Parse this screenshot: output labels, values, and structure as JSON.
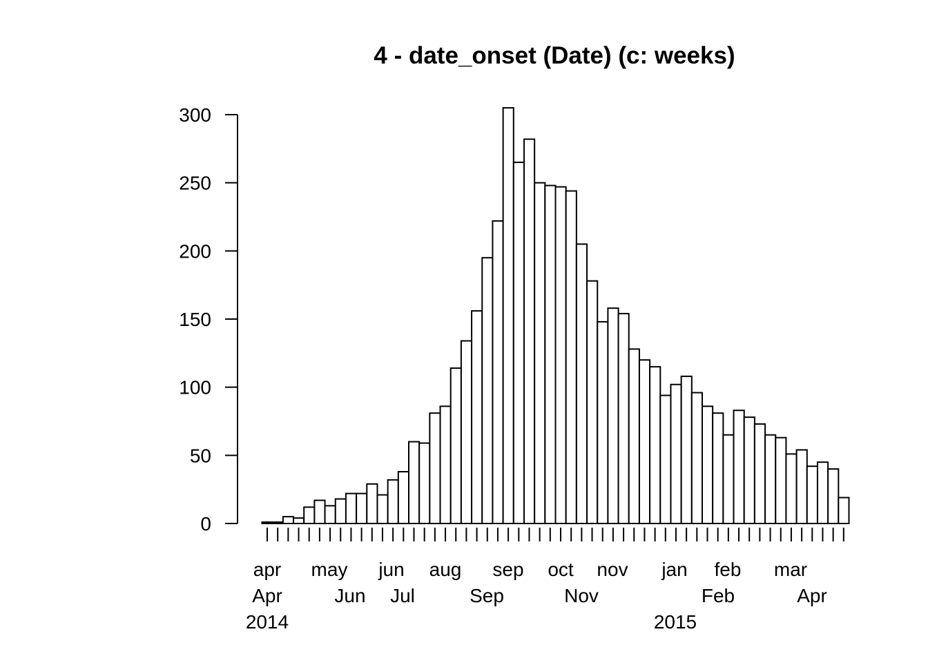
{
  "chart_data": {
    "type": "bar",
    "title": "4 - date_onset (Date) (c: weeks)",
    "xlabel": "",
    "ylabel": "",
    "ylim": [
      0,
      300
    ],
    "yticks": [
      0,
      50,
      100,
      150,
      200,
      250,
      300
    ],
    "grid": false,
    "legend": "none",
    "bar_color": "#ffffff",
    "edge_color": "#000000",
    "series": [
      {
        "values": [
          1,
          1,
          5,
          4,
          12,
          17,
          13,
          18,
          22,
          22,
          29,
          21,
          32,
          38,
          60,
          59,
          81,
          86,
          114,
          134,
          156,
          195,
          222,
          305,
          265,
          282,
          250,
          248,
          247,
          244,
          205,
          178,
          148,
          158,
          154,
          128,
          120,
          115,
          94,
          102,
          108,
          96,
          86,
          81,
          65,
          83,
          78,
          73,
          65,
          63,
          51,
          54,
          42,
          45,
          40,
          19
        ]
      }
    ],
    "x_tick_labels": {
      "level1": [
        "apr",
        "may",
        "jun",
        "aug",
        "sep",
        "oct",
        "nov",
        "jan",
        "feb",
        "mar"
      ],
      "level2": [
        "Apr",
        "Jun",
        "Jul",
        "Sep",
        "Nov",
        "Feb",
        "Apr"
      ],
      "level3": [
        "2014",
        "2015"
      ]
    }
  }
}
